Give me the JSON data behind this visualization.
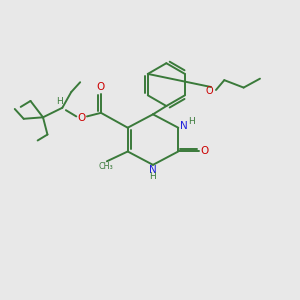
{
  "bg_color": "#e8e8e8",
  "bond_color": "#3a7a3a",
  "N_color": "#2020dd",
  "O_color": "#cc0000",
  "fig_size": [
    3.0,
    3.0
  ],
  "dpi": 100,
  "xlim": [
    0,
    10
  ],
  "ylim": [
    0,
    10
  ]
}
